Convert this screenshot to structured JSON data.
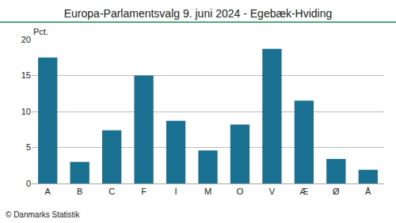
{
  "chart_data": {
    "type": "bar",
    "title": "Europa-Parlamentsvalg 9. juni 2024 - Egebæk-Hviding",
    "ylabel": "Pct.",
    "annotations": [
      "© Danmarks Statistik"
    ],
    "categories": [
      "A",
      "B",
      "C",
      "F",
      "I",
      "M",
      "O",
      "V",
      "Æ",
      "Ø",
      "Å"
    ],
    "values": [
      17.5,
      3.0,
      7.4,
      15.0,
      8.7,
      4.6,
      8.2,
      18.7,
      11.5,
      3.4,
      1.9
    ],
    "color": "#1a7090",
    "ylim": [
      0,
      20
    ],
    "yticks": [
      0,
      5,
      10,
      15,
      20
    ],
    "grid": true
  }
}
